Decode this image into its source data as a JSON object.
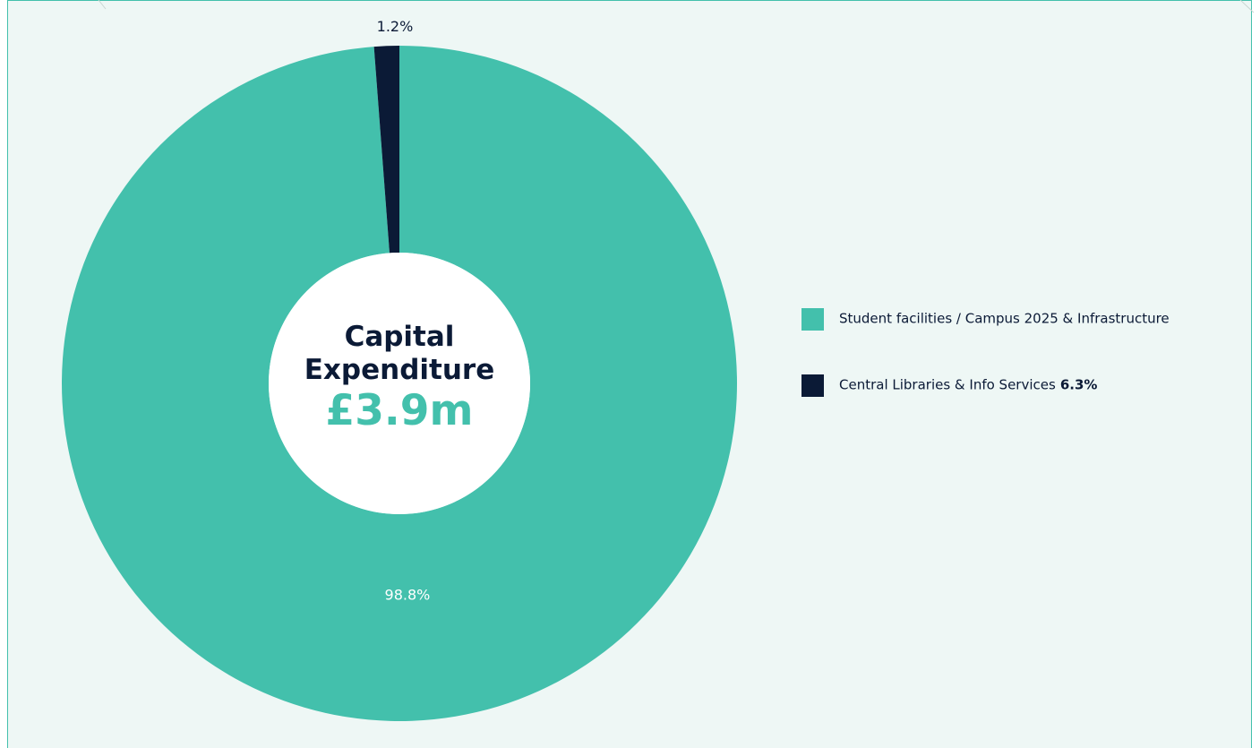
{
  "chart_data": {
    "type": "donut",
    "title": "Capital Expenditure",
    "subtitle": "£3.9m",
    "categories": [
      "Student facilities / Campus 2025 & Infrastructure",
      "Central Libraries & Info Services"
    ],
    "values": [
      98.8,
      1.2
    ],
    "value_labels": [
      "98.8%",
      "1.2%"
    ],
    "colors": [
      "#43c0ac",
      "#0b1a36"
    ],
    "legend_annotations": [
      null,
      "6.3%"
    ],
    "legend_position": "right"
  }
}
